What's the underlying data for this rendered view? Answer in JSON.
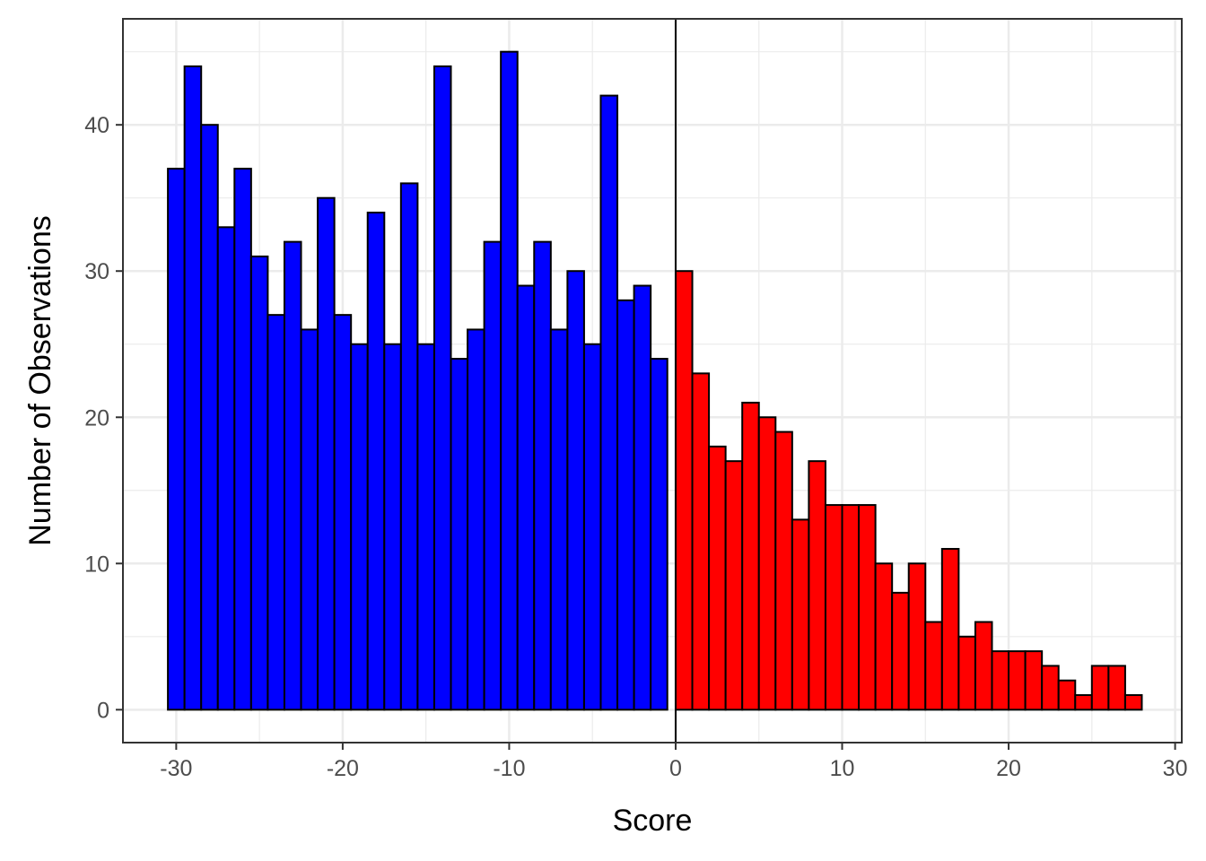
{
  "chart_data": {
    "type": "bar",
    "xlabel": "Score",
    "ylabel": "Number of Observations",
    "xlim": [
      -33.2,
      30.4
    ],
    "ylim": [
      -2.25,
      47.25
    ],
    "x_ticks": [
      -30,
      -20,
      -10,
      0,
      10,
      20,
      30
    ],
    "y_ticks": [
      0,
      10,
      20,
      30,
      40
    ],
    "x_tick_labels": [
      "-30",
      "-20",
      "-10",
      "0",
      "10",
      "20",
      "30"
    ],
    "y_tick_labels": [
      "0",
      "10",
      "20",
      "30",
      "40"
    ],
    "grid": true,
    "vline_x": 0,
    "bin_width": 1,
    "series": [
      {
        "color": "#0000ff",
        "bin_starts": [
          -30.5,
          -29.5,
          -28.5,
          -27.5,
          -26.5,
          -25.5,
          -24.5,
          -23.5,
          -22.5,
          -21.5,
          -20.5,
          -19.5,
          -18.5,
          -17.5,
          -16.5,
          -15.5,
          -14.5,
          -13.5,
          -12.5,
          -11.5,
          -10.5,
          -9.5,
          -8.5,
          -7.5,
          -6.5,
          -5.5,
          -4.5,
          -3.5,
          -2.5,
          -1.5
        ],
        "values": [
          37,
          44,
          40,
          33,
          37,
          31,
          27,
          32,
          26,
          35,
          27,
          25,
          34,
          25,
          36,
          25,
          44,
          24,
          26,
          32,
          45,
          29,
          32,
          26,
          30,
          25,
          42,
          28,
          29,
          24
        ]
      },
      {
        "color": "#ff0000",
        "bin_starts": [
          0,
          1,
          2,
          3,
          4,
          5,
          6,
          7,
          8,
          9,
          10,
          11,
          12,
          13,
          14,
          15,
          16,
          17,
          18,
          19,
          20,
          21,
          22,
          23,
          24,
          25,
          26,
          27
        ],
        "values": [
          30,
          23,
          18,
          17,
          21,
          20,
          19,
          13,
          17,
          14,
          14,
          14,
          10,
          8,
          10,
          6,
          11,
          5,
          6,
          4,
          4,
          4,
          3,
          2,
          1,
          3,
          3,
          1
        ]
      }
    ]
  }
}
